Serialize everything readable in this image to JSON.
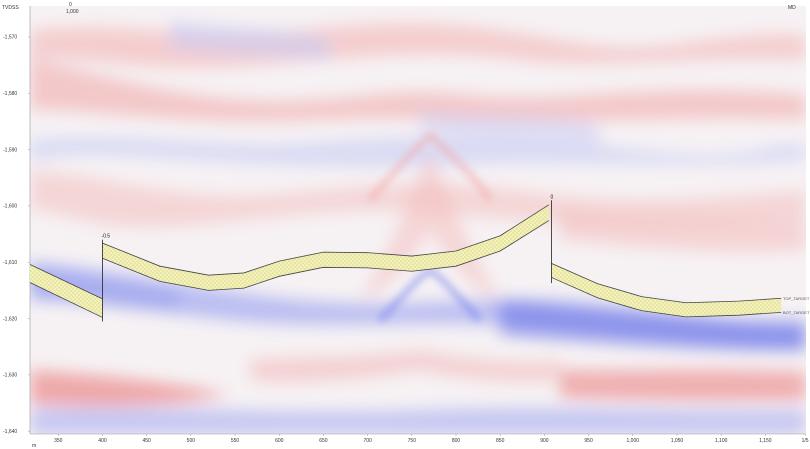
{
  "axes": {
    "y_title": "TVDSS",
    "x_title": "MD",
    "top_left_label": "1,000",
    "top_left_marker": "0",
    "bottom_left": "m"
  },
  "colors": {
    "band_fill": "#f2f0b4",
    "band_stroke": "#444444",
    "seismic_red": "#e04b4b",
    "seismic_blue": "#4a55e6"
  },
  "chart_data": {
    "type": "area",
    "xlabel": "MD",
    "ylabel": "TVDSS",
    "xlim": [
      318,
      1196
    ],
    "ylim": [
      -1564.5,
      -1640.5
    ],
    "x_ticks": [
      {
        "v": 350,
        "label": "350"
      },
      {
        "v": 400,
        "label": "400"
      },
      {
        "v": 450,
        "label": "450"
      },
      {
        "v": 500,
        "label": "500"
      },
      {
        "v": 550,
        "label": "550"
      },
      {
        "v": 600,
        "label": "600"
      },
      {
        "v": 650,
        "label": "650"
      },
      {
        "v": 700,
        "label": "700"
      },
      {
        "v": 750,
        "label": "750"
      },
      {
        "v": 800,
        "label": "800"
      },
      {
        "v": 850,
        "label": "850"
      },
      {
        "v": 900,
        "label": "900"
      },
      {
        "v": 950,
        "label": "950"
      },
      {
        "v": 1000,
        "label": "1,000"
      },
      {
        "v": 1050,
        "label": "1,050"
      },
      {
        "v": 1100,
        "label": "1,100"
      },
      {
        "v": 1150,
        "label": "1,150"
      },
      {
        "v": 1195,
        "label": "1/5"
      }
    ],
    "y_ticks": [
      {
        "v": -1570,
        "label": "-1,570"
      },
      {
        "v": -1580,
        "label": "-1,580"
      },
      {
        "v": -1590,
        "label": "-1,590"
      },
      {
        "v": -1600,
        "label": "-1,600"
      },
      {
        "v": -1610,
        "label": "-1,610"
      },
      {
        "v": -1620,
        "label": "-1,620"
      },
      {
        "v": -1630,
        "label": "-1,630"
      },
      {
        "v": -1640,
        "label": "-1,640"
      }
    ],
    "segments": [
      {
        "top": [
          [
            318,
            -1610.4
          ],
          [
            400,
            -1616.5
          ]
        ],
        "bot": [
          [
            318,
            -1613.6
          ],
          [
            400,
            -1619.8
          ]
        ]
      },
      {
        "top": [
          [
            400,
            -1606.6
          ],
          [
            465,
            -1610.7
          ],
          [
            520,
            -1612.3
          ],
          [
            560,
            -1611.9
          ],
          [
            600,
            -1609.8
          ],
          [
            650,
            -1608.2
          ],
          [
            700,
            -1608.3
          ],
          [
            750,
            -1608.9
          ],
          [
            800,
            -1608.0
          ],
          [
            850,
            -1605.3
          ],
          [
            905,
            -1599.8
          ]
        ],
        "bot": [
          [
            400,
            -1609.3
          ],
          [
            465,
            -1613.4
          ],
          [
            520,
            -1615.0
          ],
          [
            560,
            -1614.6
          ],
          [
            600,
            -1612.5
          ],
          [
            650,
            -1610.9
          ],
          [
            700,
            -1611.0
          ],
          [
            750,
            -1611.6
          ],
          [
            800,
            -1610.7
          ],
          [
            850,
            -1608.0
          ],
          [
            905,
            -1602.6
          ]
        ]
      },
      {
        "top": [
          [
            908,
            -1610.2
          ],
          [
            960,
            -1613.8
          ],
          [
            1010,
            -1616.1
          ],
          [
            1060,
            -1617.2
          ],
          [
            1120,
            -1616.9
          ],
          [
            1168,
            -1616.4
          ]
        ],
        "bot": [
          [
            908,
            -1612.7
          ],
          [
            960,
            -1616.3
          ],
          [
            1010,
            -1618.6
          ],
          [
            1060,
            -1619.7
          ],
          [
            1120,
            -1619.4
          ],
          [
            1168,
            -1618.9
          ]
        ]
      }
    ],
    "faults": [
      {
        "x": 400,
        "y_top": -1606.0,
        "y_bot": -1620.5,
        "label": "-0.5"
      },
      {
        "x": 908,
        "y_top": -1599.0,
        "y_bot": -1613.7,
        "label": "0"
      }
    ],
    "surface_labels": [
      {
        "name": "TOP_TARGET",
        "x": 1170,
        "y": -1616.4
      },
      {
        "name": "BOT_TARGET",
        "x": 1170,
        "y": -1618.9
      }
    ],
    "grid": false
  }
}
